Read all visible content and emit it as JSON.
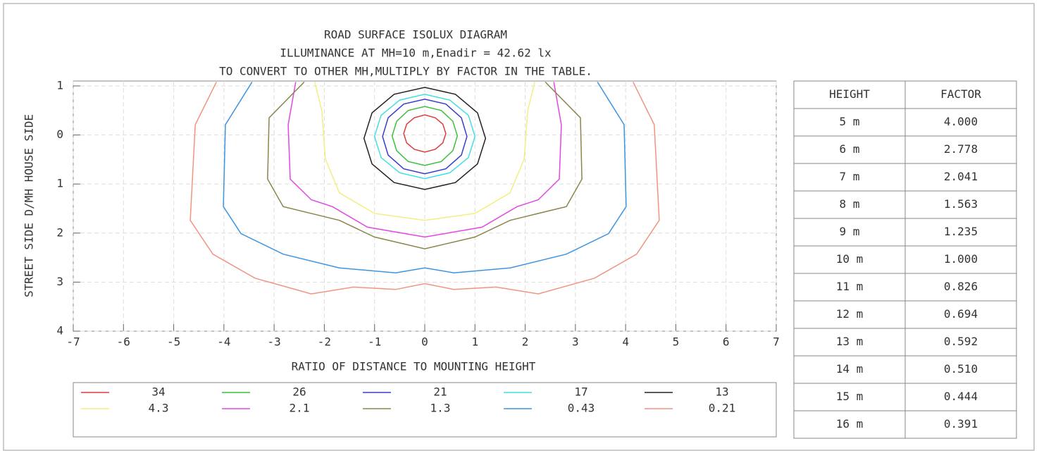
{
  "chart_data": {
    "type": "contour",
    "title": [
      "ROAD SURFACE ISOLUX DIAGRAM",
      "ILLUMINANCE AT MH=10 m,Enadir  = 42.62 lx",
      "TO CONVERT TO OTHER MH,MULTIPLY BY FACTOR IN THE TABLE."
    ],
    "x_label": "RATIO OF DISTANCE TO MOUNTING HEIGHT",
    "y_label": "STREET SIDE  D/MH  HOUSE SIDE",
    "xlim": [
      -7,
      7
    ],
    "xticks": [
      -7,
      -6,
      -5,
      -4,
      -3,
      -2,
      -1,
      0,
      1,
      2,
      3,
      4,
      5,
      6,
      7
    ],
    "ylim": [
      -1.1,
      4
    ],
    "y_inverted": true,
    "yticks": [
      {
        "value": -1,
        "label": "1"
      },
      0,
      1,
      2,
      3,
      4
    ],
    "grid": true,
    "series": [
      {
        "name": "34",
        "color": "#e03a3a",
        "closed": true,
        "x": [
          0.42,
          0.36,
          0.21,
          0,
          -0.21,
          -0.36,
          -0.42,
          -0.36,
          -0.21,
          0,
          0.21,
          0.36
        ],
        "y": [
          -0.03,
          0.16,
          0.29,
          0.35,
          0.29,
          0.16,
          -0.03,
          -0.22,
          -0.35,
          -0.41,
          -0.35,
          -0.22
        ]
      },
      {
        "name": "26",
        "color": "#3cc03c",
        "closed": true,
        "x": [
          0.65,
          0.56,
          0.33,
          0,
          -0.33,
          -0.56,
          -0.65,
          -0.56,
          -0.33,
          0,
          0.33,
          0.56
        ],
        "y": [
          0.02,
          0.32,
          0.54,
          0.62,
          0.54,
          0.32,
          0.02,
          -0.28,
          -0.5,
          -0.58,
          -0.5,
          -0.28
        ]
      },
      {
        "name": "21",
        "color": "#3a3ad0",
        "closed": true,
        "x": [
          0.84,
          0.73,
          0.42,
          0,
          -0.42,
          -0.73,
          -0.84,
          -0.73,
          -0.42,
          0,
          0.42,
          0.73
        ],
        "y": [
          0.03,
          0.41,
          0.69,
          0.79,
          0.69,
          0.41,
          0.03,
          -0.35,
          -0.63,
          -0.73,
          -0.63,
          -0.35
        ]
      },
      {
        "name": "17",
        "color": "#40e0e0",
        "closed": true,
        "x": [
          1,
          0.87,
          0.5,
          0,
          -0.5,
          -0.87,
          -1,
          -0.87,
          -0.5,
          0,
          0.5,
          0.87
        ],
        "y": [
          0.03,
          0.46,
          0.77,
          0.89,
          0.77,
          0.46,
          0.03,
          -0.4,
          -0.71,
          -0.83,
          -0.71,
          -0.4
        ]
      },
      {
        "name": "13",
        "color": "#222222",
        "closed": true,
        "x": [
          1.21,
          1.05,
          0.61,
          0,
          -0.61,
          -1.05,
          -1.21,
          -1.05,
          -0.61,
          0,
          0.61,
          1.05
        ],
        "y": [
          0.07,
          0.59,
          0.97,
          1.11,
          0.97,
          0.59,
          0.07,
          -0.45,
          -0.83,
          -0.97,
          -0.83,
          -0.45
        ]
      },
      {
        "name": "4.3",
        "color": "#f3ee84",
        "closed": false,
        "x": [
          -2.19,
          -2.05,
          -1.98,
          -1.7,
          -1,
          0,
          1,
          1.7,
          1.98,
          2.05,
          2.19
        ],
        "y": [
          -1.08,
          -0.49,
          0.49,
          1.18,
          1.6,
          1.74,
          1.6,
          1.18,
          0.49,
          -0.49,
          -1.08
        ]
      },
      {
        "name": "2.1",
        "color": "#e048e0",
        "closed": false,
        "x": [
          -2.57,
          -2.72,
          -2.68,
          -2.26,
          -1.84,
          -1.14,
          0,
          1.14,
          1.84,
          2.26,
          2.68,
          2.72,
          2.57
        ],
        "y": [
          -1.08,
          -0.21,
          0.9,
          1.32,
          1.46,
          1.88,
          2.08,
          1.88,
          1.46,
          1.32,
          0.9,
          -0.21,
          -1.08
        ]
      },
      {
        "name": "1.3",
        "color": "#8a8648",
        "closed": false,
        "x": [
          -2.4,
          -3.1,
          -3.13,
          -2.82,
          -1.98,
          -1.7,
          -1,
          0,
          1,
          1.7,
          1.98,
          2.82,
          3.13,
          3.1,
          2.4
        ],
        "y": [
          -1.08,
          -0.35,
          0.9,
          1.46,
          1.67,
          1.74,
          2.08,
          2.32,
          2.08,
          1.74,
          1.67,
          1.46,
          0.9,
          -0.35,
          -1.08
        ]
      },
      {
        "name": "0.43",
        "color": "#3c94e0",
        "closed": false,
        "x": [
          -3.44,
          -3.97,
          -4.01,
          -3.66,
          -2.82,
          -1.7,
          -0.58,
          0,
          0.58,
          1.7,
          2.82,
          3.66,
          4.01,
          3.97,
          3.44
        ],
        "y": [
          -1.08,
          -0.21,
          1.46,
          2.01,
          2.43,
          2.71,
          2.81,
          2.71,
          2.81,
          2.71,
          2.43,
          2.01,
          1.46,
          -0.21,
          -1.08
        ]
      },
      {
        "name": "0.21",
        "color": "#f09482",
        "closed": false,
        "x": [
          -4.15,
          -4.57,
          -4.67,
          -4.22,
          -3.38,
          -2.26,
          -1.42,
          -0.58,
          0,
          0.58,
          1.42,
          2.26,
          3.38,
          4.22,
          4.67,
          4.57,
          4.15
        ],
        "y": [
          -1.08,
          -0.21,
          1.74,
          2.43,
          2.92,
          3.24,
          3.1,
          3.15,
          3.03,
          3.15,
          3.1,
          3.24,
          2.92,
          2.43,
          1.74,
          -0.21,
          -1.08
        ]
      }
    ]
  },
  "table": {
    "header": [
      "HEIGHT",
      "FACTOR"
    ],
    "rows": [
      [
        "5 m",
        "4.000"
      ],
      [
        "6 m",
        "2.778"
      ],
      [
        "7 m",
        "2.041"
      ],
      [
        "8 m",
        "1.563"
      ],
      [
        "9 m",
        "1.235"
      ],
      [
        "10 m",
        "1.000"
      ],
      [
        "11 m",
        "0.826"
      ],
      [
        "12 m",
        "0.694"
      ],
      [
        "13 m",
        "0.592"
      ],
      [
        "14 m",
        "0.510"
      ],
      [
        "15 m",
        "0.444"
      ],
      [
        "16 m",
        "0.391"
      ]
    ]
  }
}
